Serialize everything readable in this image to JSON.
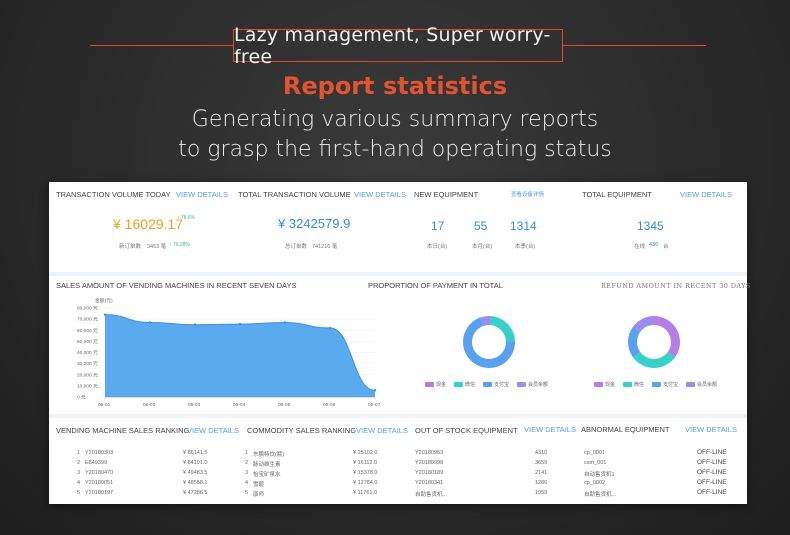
{
  "hero": {
    "tagline": "Lazy management, Super worry-free",
    "section_title": "Report statistics",
    "subtitle_line1": "Generating various summary reports",
    "subtitle_line2": "to grasp the first-hand operating status"
  },
  "colors": {
    "accent": "#e0482a",
    "orange_value": "#f0a020",
    "blue_value": "#3a8ad8",
    "link": "#5a9be0",
    "area_fill": "#5aaaf0"
  },
  "dashboard": {
    "view_details": "VIEW DETAILS",
    "kpi": {
      "transaction_volume_today": {
        "label": "TRANSACTION VOLUME TODAY",
        "value": "¥ 16029.17",
        "change": "↑ 78.6%",
        "sub_label": "新订单数",
        "sub_value": "3453 笔",
        "sub_change": "↑ 76.28%"
      },
      "total_transaction_volume": {
        "label": "TOTAL TRANSACTION VOLUME",
        "value": "¥ 3242579.9",
        "sub_label": "总订单数",
        "sub_value": "741216 笔"
      },
      "new_equipment": {
        "label": "NEW EQUIPMENT",
        "link": "查看设备详情",
        "values": [
          {
            "value": "17",
            "label": "本日(台)"
          },
          {
            "value": "55",
            "label": "本月(台)"
          },
          {
            "value": "1314",
            "label": "本季(台)"
          }
        ]
      },
      "total_equipment": {
        "label": "TOTAL EQUIPMENT",
        "value": "1345",
        "sub_label": "在线",
        "sub_value": "436",
        "sub_unit": "台"
      }
    },
    "sales_chart_title": "SALES AMOUNT OF VENDING MACHINES IN RECENT SEVEN DAYS",
    "payment_title": "PROPORTION OF PAYMENT IN TOTAL",
    "refund_title": "REFUND AMOUNT IN RECENT 30 DAYS",
    "legend": [
      "现金",
      "微信",
      "支付宝",
      "会员余额"
    ],
    "legend_colors": [
      "#b67de6",
      "#36d1c8",
      "#5aa0f0",
      "#9b8cf0"
    ],
    "rankings": {
      "vending_sales": {
        "label": "VENDING MACHINE SALES RANKING",
        "rows": [
          {
            "rank": "1",
            "name": "Y20180303",
            "value": "¥ 86141.5"
          },
          {
            "rank": "2",
            "name": "E849399",
            "value": "¥ 64191.0"
          },
          {
            "rank": "3",
            "name": "Y20180470",
            "value": "¥ 49483.5"
          },
          {
            "rank": "4",
            "name": "Y20180051",
            "value": "¥ 48558.1"
          },
          {
            "rank": "5",
            "name": "Y20180197",
            "value": "¥ 47286.5"
          }
        ]
      },
      "commodity_sales": {
        "label": "COMMODITY SALES RANKING",
        "rows": [
          {
            "rank": "1",
            "name": "东鹏特饮(瓶)",
            "value": "¥ 25102.0"
          },
          {
            "rank": "2",
            "name": "脉动维生素",
            "value": "¥ 16112.0"
          },
          {
            "rank": "3",
            "name": "怡宝矿泉水",
            "value": "¥ 15378.0"
          },
          {
            "rank": "4",
            "name": "雪碧",
            "value": "¥ 12784.0"
          },
          {
            "rank": "5",
            "name": "康师",
            "value": "¥ 11761.0"
          }
        ]
      },
      "out_of_stock": {
        "label": "OUT OF STOCK EQUIPMENT",
        "rows": [
          {
            "name": "Y20180953",
            "value": "4310"
          },
          {
            "name": "Y20180998",
            "value": "3659"
          },
          {
            "name": "Y20180189",
            "value": "2141"
          },
          {
            "name": "Y20180341",
            "value": "1286"
          },
          {
            "name": "自助售货机...",
            "value": "1059"
          }
        ]
      },
      "abnormal": {
        "label": "ABNORMAL EQUIPMENT",
        "rows": [
          {
            "name": "cp_0001",
            "status": "OFF-LINE"
          },
          {
            "name": "csm_001",
            "status": "OFF-LINE"
          },
          {
            "name": "自动售货机1",
            "status": "OFF-LINE"
          },
          {
            "name": "cp_0002",
            "status": "OFF-LINE"
          },
          {
            "name": "自助售货机...",
            "status": "OFF-LINE"
          }
        ]
      }
    }
  },
  "chart_data": [
    {
      "type": "area",
      "title": "SALES AMOUNT OF VENDING MACHINES IN RECENT SEVEN DAYS",
      "ylabel": "金额(元)",
      "categories": [
        "06-01",
        "06-02",
        "06-03",
        "06-04",
        "06-05",
        "06-06",
        "06-07"
      ],
      "values": [
        74000,
        67000,
        65000,
        65500,
        67000,
        62000,
        6000
      ],
      "yticks": [
        "80,000 元",
        "70,000 元",
        "60,000 元",
        "50,000 元",
        "40,000 元",
        "30,000 元",
        "20,000 元",
        "10,000 元",
        "0 元"
      ],
      "ylim": [
        0,
        80000
      ]
    },
    {
      "type": "pie",
      "title": "PROPORTION OF PAYMENT IN TOTAL",
      "labels": [
        "现金",
        "微信",
        "支付宝",
        "会员余额"
      ],
      "values": [
        1.1,
        23.4,
        70.2,
        5.3
      ]
    },
    {
      "type": "pie",
      "title": "REFUND AMOUNT IN RECENT 30 DAYS",
      "labels": [
        "现金",
        "微信",
        "支付宝",
        "会员余额"
      ],
      "values": [
        35,
        30,
        20,
        15
      ]
    }
  ]
}
